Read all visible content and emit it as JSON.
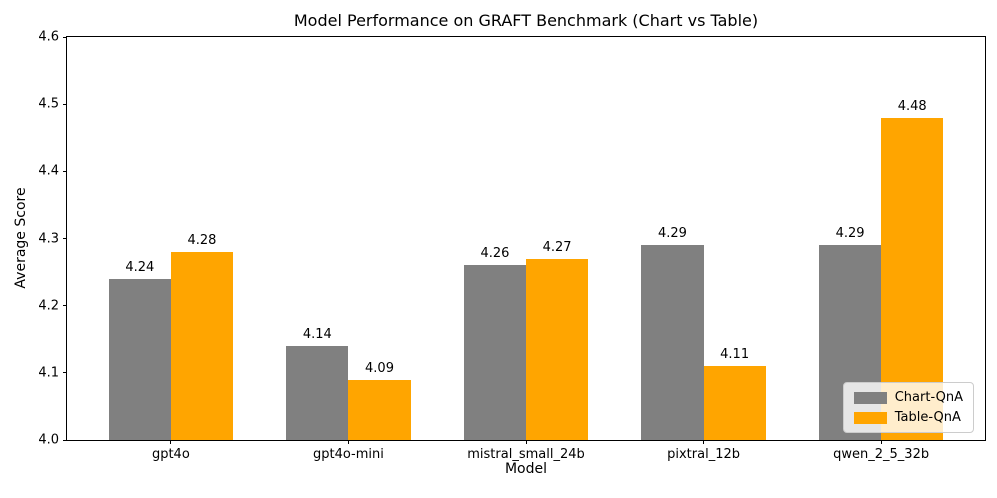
{
  "chart_data": {
    "type": "bar",
    "title": "Model Performance on GRAFT Benchmark (Chart vs Table)",
    "xlabel": "Model",
    "ylabel": "Average Score",
    "categories": [
      "gpt4o",
      "gpt4o-mini",
      "mistral_small_24b",
      "pixtral_12b",
      "qwen_2_5_32b"
    ],
    "series": [
      {
        "name": "Chart-QnA",
        "color": "#808080",
        "values": [
          4.24,
          4.14,
          4.26,
          4.29,
          4.29
        ]
      },
      {
        "name": "Table-QnA",
        "color": "#FFA500",
        "values": [
          4.28,
          4.09,
          4.27,
          4.11,
          4.48
        ]
      }
    ],
    "ylim": [
      4.0,
      4.6
    ],
    "yticks": [
      4.0,
      4.1,
      4.2,
      4.3,
      4.4,
      4.5,
      4.6
    ],
    "xlim": [
      -0.585,
      4.585
    ],
    "bar_width": 0.35,
    "value_label_decimals": 2,
    "grid": false,
    "legend_position": "lower right"
  }
}
